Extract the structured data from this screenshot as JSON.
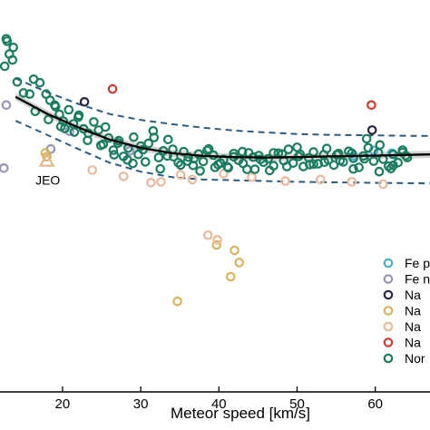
{
  "chart_data": {
    "type": "scatter",
    "xlabel": "Meteor speed [km/s]",
    "ylabel": "",
    "xlim": [
      12,
      67
    ],
    "ylim": [
      0,
      100
    ],
    "xticks": [
      20,
      30,
      40,
      50,
      60
    ],
    "xtick_labels": [
      "20",
      "30",
      "40",
      "50",
      "60"
    ],
    "grid": false,
    "legend_placement": "right",
    "legend": [
      {
        "label": "Fe p",
        "color": "#4aaed0"
      },
      {
        "label": "Fe n",
        "color": "#9b93bb"
      },
      {
        "label": "Na",
        "color": "#2c2544"
      },
      {
        "label": "Na",
        "color": "#d9b45c"
      },
      {
        "label": "Na",
        "color": "#eab99a"
      },
      {
        "label": "Na",
        "color": "#d93a2e"
      },
      {
        "label": "Nor",
        "color": "#1a7d60"
      }
    ],
    "annotations": [
      {
        "text": "JEO",
        "x": 18.0,
        "y": 58.9
      }
    ],
    "fit": {
      "name": "fit",
      "x": [
        14,
        18,
        22,
        26,
        30,
        34,
        38,
        42,
        46,
        50,
        54,
        58,
        62,
        67
      ],
      "y": [
        75.3,
        71.0,
        67.5,
        64.4,
        62.3,
        60.9,
        60.2,
        59.9,
        59.8,
        59.9,
        60.1,
        60.2,
        60.4,
        60.6
      ],
      "upper": [
        80.0,
        76.5,
        73.5,
        70.9,
        69.4,
        68.3,
        67.4,
        66.7,
        66.2,
        65.8,
        65.6,
        65.5,
        65.4,
        65.3
      ],
      "lower": [
        69.2,
        65.6,
        62.0,
        58.5,
        56.2,
        54.8,
        54.2,
        54.0,
        53.8,
        53.6,
        53.5,
        53.4,
        53.3,
        53.2
      ]
    },
    "series": [
      {
        "name": "Fe p",
        "color": "#4aaed0",
        "x": [
          57.2,
          59.8,
          62.1
        ],
        "y": [
          60.2,
          61.6,
          60.9
        ]
      },
      {
        "name": "Fe n",
        "color": "#9b93bb",
        "x": [
          12.8,
          12.5,
          20.9,
          28.6,
          18.5
        ],
        "y": [
          73.2,
          57.1,
          66.5,
          61.5,
          62.0
        ]
      },
      {
        "name": "Na",
        "color": "#2c2544",
        "x": [
          22.8,
          59.6
        ],
        "y": [
          74.0,
          66.8
        ]
      },
      {
        "name": "Na",
        "color": "#d9b45c",
        "x": [
          39.7,
          42.0,
          42.6,
          41.5,
          34.7,
          18.0,
          17.8
        ],
        "y": [
          37.5,
          36.1,
          33.0,
          29.4,
          23.1,
          60.0,
          61.0
        ]
      },
      {
        "name": "Na",
        "color": "#eab99a",
        "x": [
          38.6,
          39.8,
          23.8,
          27.8,
          31.3,
          32.6,
          35.1,
          36.6,
          40.6,
          44.2,
          48.5,
          53.0,
          57.0,
          61.0
        ],
        "y": [
          40.0,
          38.8,
          56.6,
          55.0,
          53.4,
          53.6,
          55.4,
          54.2,
          55.7,
          54.8,
          53.8,
          54.2,
          53.6,
          53.0
        ]
      },
      {
        "name": "Na",
        "color": "#d93a2e",
        "x": [
          26.4,
          59.5
        ],
        "y": [
          77.3,
          73.2
        ]
      },
      {
        "name": "Nor",
        "color": "#1a7d60",
        "x": [
          12.8,
          13.6,
          13.2,
          12.6,
          14.2,
          15.0,
          15.8,
          16.3,
          17.1,
          17.9,
          18.4,
          19.0,
          19.6,
          20.1,
          20.8,
          21.4,
          22.1,
          22.7,
          23.3,
          24.0,
          24.6,
          25.2,
          25.9,
          26.5,
          27.1,
          27.8,
          28.4,
          29.1,
          29.7,
          30.3,
          31.0,
          31.6,
          32.3,
          32.9,
          33.5,
          34.2,
          34.8,
          35.5,
          36.1,
          36.7,
          37.4,
          38.0,
          38.7,
          39.3,
          39.9,
          40.6,
          41.2,
          41.9,
          42.5,
          43.1,
          43.8,
          44.4,
          45.1,
          45.7,
          46.3,
          47.0,
          47.6,
          48.3,
          48.9,
          49.5,
          50.2,
          50.8,
          51.5,
          52.1,
          52.7,
          53.4,
          54.0,
          54.7,
          55.3,
          55.9,
          56.6,
          57.2,
          57.9,
          58.5,
          59.1,
          59.8,
          60.4,
          61.0,
          61.7,
          62.3,
          62.9,
          63.5,
          64.1,
          16.5,
          18.2,
          19.8,
          21.5,
          23.2,
          24.9,
          26.6,
          28.3,
          30.0,
          31.7,
          33.4,
          35.1,
          36.8,
          38.5,
          40.2,
          41.9,
          43.6,
          45.3,
          47.0,
          48.7,
          50.4,
          52.1,
          53.8,
          55.5,
          57.2,
          58.9,
          60.6,
          62.3,
          63.9,
          22.0,
          25.5,
          29.0,
          32.5,
          36.0,
          39.5,
          43.0,
          46.5,
          50.0,
          53.5,
          57.0,
          60.5,
          63.5,
          12.9,
          13.7,
          19.1,
          20.3,
          27.2,
          30.6,
          34.1,
          37.6,
          41.1,
          44.6,
          48.1,
          51.6,
          55.1,
          58.6,
          62.0
        ],
        "y": [
          90.1,
          84.7,
          86.2,
          83.1,
          79.1,
          76.3,
          76.0,
          79.8,
          78.9,
          76.0,
          74.4,
          73.2,
          70.8,
          69.1,
          72.0,
          68.4,
          70.6,
          67.1,
          66.0,
          68.9,
          66.8,
          63.2,
          64.8,
          61.7,
          63.5,
          60.1,
          62.2,
          65.0,
          60.6,
          61.8,
          63.4,
          66.6,
          59.8,
          61.5,
          64.4,
          60.0,
          58.5,
          61.3,
          59.9,
          57.8,
          60.7,
          58.8,
          62.0,
          60.4,
          58.0,
          59.3,
          57.2,
          60.8,
          59.1,
          58.3,
          61.0,
          59.9,
          60.3,
          58.6,
          59.5,
          57.7,
          60.9,
          59.0,
          61.9,
          58.4,
          60.1,
          57.5,
          59.7,
          61.2,
          58.2,
          60.5,
          59.2,
          57.9,
          60.8,
          58.7,
          61.4,
          59.6,
          57.3,
          60.2,
          62.3,
          58.9,
          61.0,
          59.4,
          57.6,
          60.6,
          58.5,
          61.1,
          59.8,
          71.6,
          69.5,
          67.7,
          66.3,
          64.2,
          62.9,
          60.5,
          59.2,
          62.7,
          64.9,
          60.2,
          57.9,
          59.5,
          61.6,
          58.4,
          60.0,
          56.8,
          59.3,
          61.0,
          57.5,
          60.6,
          58.1,
          62.1,
          59.0,
          56.9,
          64.6,
          63.0,
          57.8,
          60.3,
          70.1,
          67.6,
          58.3,
          56.9,
          58.9,
          57.3,
          61.3,
          56.5,
          62.4,
          58.6,
          60.9,
          56.2,
          61.7,
          89.5,
          87.9,
          72.8,
          67.2,
          64.1,
          58.7,
          61.9,
          56.4,
          57.4,
          56.8,
          60.7,
          58.0,
          60.5,
          59.5,
          57.0
        ]
      }
    ]
  }
}
